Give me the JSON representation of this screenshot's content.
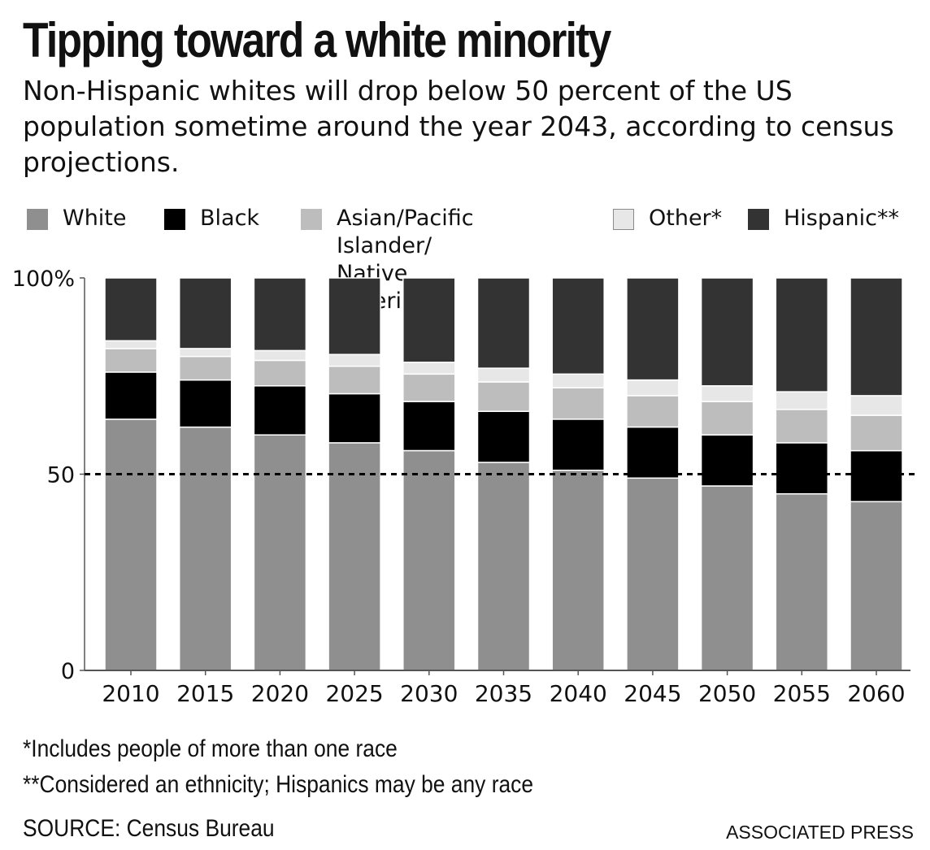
{
  "header": {
    "title": "Tipping toward a white minority",
    "subtitle": "Non-Hispanic whites will drop below 50 percent of the US population sometime around the year 2043, according to census projections."
  },
  "legend": [
    {
      "label": "White",
      "color": "#8f8f8f"
    },
    {
      "label": "Black",
      "color": "#000000"
    },
    {
      "label": "Asian/Pacific Islander/\nNative American",
      "color": "#bdbdbd"
    },
    {
      "label": "Other*",
      "color": "#e7e7e7"
    },
    {
      "label": "Hispanic**",
      "color": "#333333"
    }
  ],
  "chart_data": {
    "type": "bar",
    "stacked": true,
    "categories": [
      "2010",
      "2015",
      "2020",
      "2025",
      "2030",
      "2035",
      "2040",
      "2045",
      "2050",
      "2055",
      "2060"
    ],
    "series": [
      {
        "name": "White",
        "color": "#8f8f8f",
        "values": [
          64,
          62,
          60,
          58,
          56,
          53,
          51,
          49,
          47,
          45,
          43
        ]
      },
      {
        "name": "Black",
        "color": "#000000",
        "values": [
          12,
          12,
          12.5,
          12.5,
          12.5,
          13,
          13,
          13,
          13,
          13,
          13
        ]
      },
      {
        "name": "Asian/Pacific Islander/\nNative American",
        "color": "#bdbdbd",
        "values": [
          6,
          6,
          6.5,
          7,
          7,
          7.5,
          8,
          8,
          8.5,
          8.5,
          9
        ]
      },
      {
        "name": "Other*",
        "color": "#e7e7e7",
        "values": [
          2,
          2,
          2.5,
          3,
          3,
          3.5,
          3.5,
          4,
          4,
          4.5,
          5
        ]
      },
      {
        "name": "Hispanic**",
        "color": "#333333",
        "values": [
          16,
          18,
          18.5,
          19.5,
          21.5,
          23,
          24.5,
          26,
          27.5,
          29,
          30
        ]
      }
    ],
    "ylim": [
      0,
      100
    ],
    "yticks": [
      {
        "value": 0,
        "label": "0"
      },
      {
        "value": 50,
        "label": "50"
      },
      {
        "value": 100,
        "label": "100%"
      }
    ],
    "reference_line": {
      "value": 50,
      "style": "dashed"
    },
    "xlabel": "",
    "ylabel": "",
    "grid": false,
    "legend_position": "top"
  },
  "footnotes": [
    "*Includes people of more than one race",
    "**Considered an ethnicity; Hispanics may be any race"
  ],
  "source": "SOURCE: Census Bureau",
  "credit": "ASSOCIATED PRESS"
}
